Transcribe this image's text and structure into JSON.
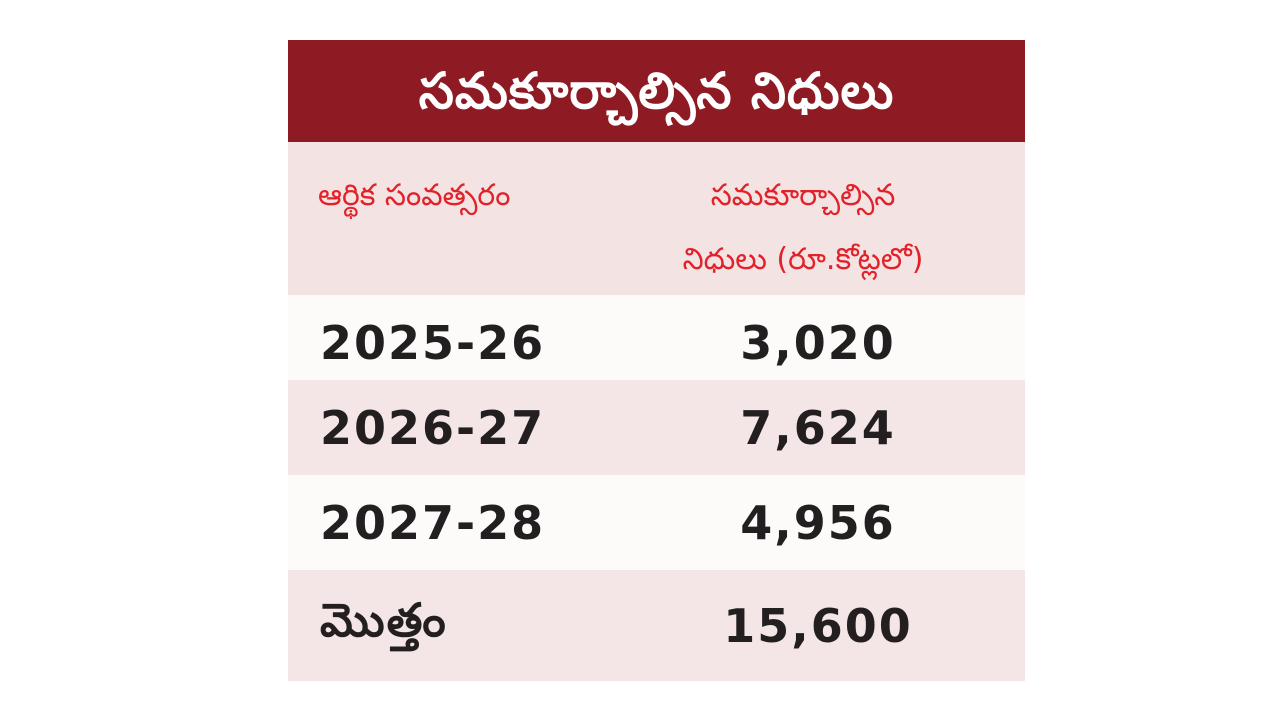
{
  "chart_data": {
    "type": "table",
    "title": "సమకూర్చాల్సిన నిధులు",
    "columns": [
      "ఆర్థిక సంవత్సరం",
      "సమకూర్చాల్సిన\nనిధులు (రూ.కోట్లలో)"
    ],
    "rows": [
      {
        "year": "2025-26",
        "amount": "3,020"
      },
      {
        "year": "2026-27",
        "amount": "7,624"
      },
      {
        "year": "2027-28",
        "amount": "4,956"
      },
      {
        "year": "మొత్తం",
        "amount": "15,600"
      }
    ],
    "values": [
      3020,
      7624,
      4956,
      15600
    ]
  },
  "colors": {
    "title_background": "#8e1a24",
    "title_text": "#ffffff",
    "header_text": "#e2222b",
    "header_background": "#f4e3e3",
    "row_light": "#fdfafa",
    "row_tinted": "#f4e6e6",
    "cell_text": "#231f20"
  }
}
